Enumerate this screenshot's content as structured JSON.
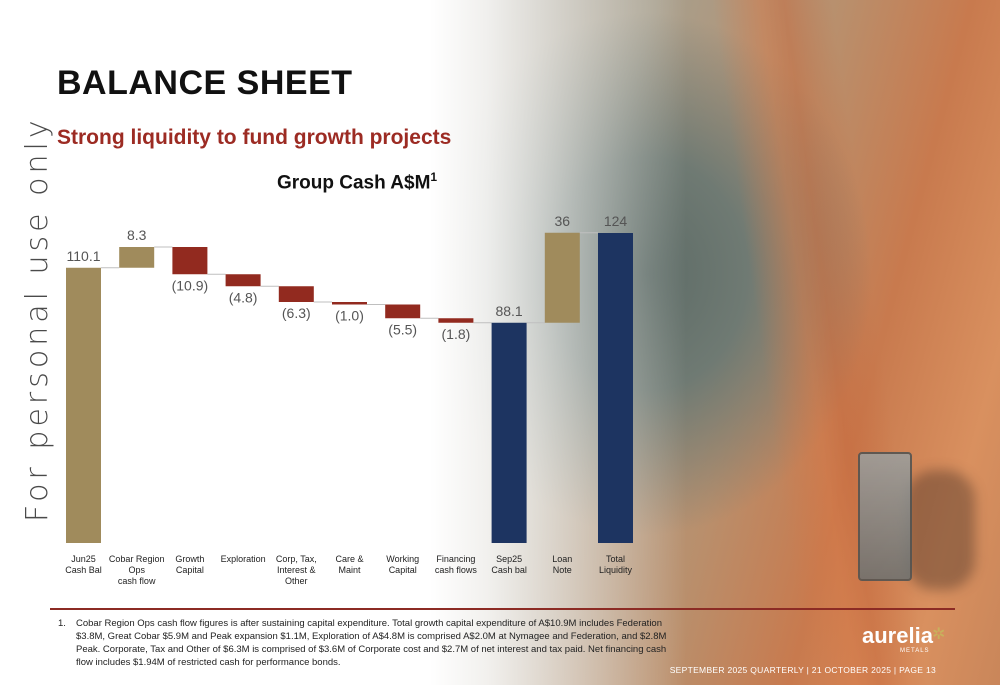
{
  "page": {
    "title": "BALANCE SHEET",
    "subtitle": "Strong liquidity to fund growth projects",
    "watermark": "For personal use only",
    "footnote_number": "1.",
    "footnote": "Cobar Region Ops cash flow figures is after sustaining capital expenditure. Total growth capital expenditure of A$10.9M includes Federation $3.8M, Great Cobar $5.9M and Peak expansion $1.1M, Exploration of A$4.8M is comprised A$2.0M at Nymagee and Federation, and $2.8M Peak. Corporate, Tax and Other of $6.3M is comprised of $3.6M of Corporate cost and $2.7M of net interest and tax paid. Net financing cash flow includes $1.94M of restricted cash for performance bonds.",
    "logo": "aurelia",
    "logo_sub": "METALS",
    "footer": "SEPTEMBER 2025 QUARTERLY  |  21 OCTOBER 2025  |  PAGE 13"
  },
  "colors": {
    "gold": "#a08b5c",
    "red": "#922a1f",
    "navy": "#1d3461",
    "title_red": "#9c2b23"
  },
  "chart_data": {
    "type": "waterfall",
    "title": "Group Cash A$M",
    "title_superscript": "1",
    "unit": "A$M",
    "ylim": [
      0,
      130
    ],
    "categories": [
      "Jun25 Cash Bal",
      "Cobar Region Ops cash flow",
      "Growth Capital",
      "Exploration",
      "Corp, Tax, Interest & Other",
      "Care & Maint",
      "Working Capital",
      "Financing cash flows",
      "Sep25 Cash bal",
      "Loan Note",
      "Total Liquidity"
    ],
    "category_lines": [
      [
        "Jun25",
        "Cash Bal"
      ],
      [
        "Cobar Region",
        "Ops",
        "cash flow"
      ],
      [
        "Growth",
        "Capital"
      ],
      [
        "Exploration"
      ],
      [
        "Corp, Tax,",
        "Interest &",
        "Other"
      ],
      [
        "Care &",
        "Maint"
      ],
      [
        "Working",
        "Capital"
      ],
      [
        "Financing",
        "cash flows"
      ],
      [
        "Sep25",
        "Cash bal"
      ],
      [
        "Loan",
        "Note"
      ],
      [
        "Total",
        "Liquidity"
      ]
    ],
    "values": [
      110.1,
      8.3,
      -10.9,
      -4.8,
      -6.3,
      -1.0,
      -5.5,
      -1.8,
      88.1,
      36,
      124
    ],
    "labels": [
      "110.1",
      "8.3",
      "(10.9)",
      "(4.8)",
      "(6.3)",
      "(1.0)",
      "(5.5)",
      "(1.8)",
      "88.1",
      "36",
      "124"
    ],
    "kinds": [
      "total",
      "delta",
      "delta",
      "delta",
      "delta",
      "delta",
      "delta",
      "delta",
      "total",
      "delta",
      "total"
    ]
  }
}
